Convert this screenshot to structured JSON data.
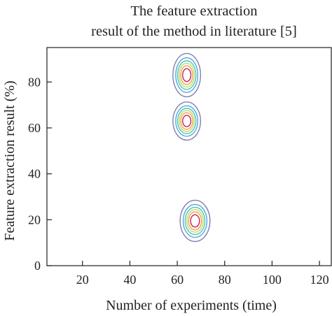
{
  "chart_data": {
    "type": "contour",
    "title": [
      "The feature extraction",
      "result of the method in literature [5]"
    ],
    "xlabel": "Number of experiments (time)",
    "ylabel": "Feature extraction result (%)",
    "xlim": [
      5,
      125
    ],
    "ylim": [
      0,
      95
    ],
    "xticks": [
      20,
      40,
      60,
      80,
      100,
      120
    ],
    "yticks": [
      0,
      20,
      40,
      60,
      80
    ],
    "grid": false,
    "peaks": [
      {
        "x": 64,
        "y": 83,
        "sx": 2.6,
        "sy": 4.2
      },
      {
        "x": 64,
        "y": 63,
        "sx": 2.6,
        "sy": 3.7
      },
      {
        "x": 67.5,
        "y": 19.5,
        "sx": 2.8,
        "sy": 4.0
      }
    ],
    "contour_levels": [
      0.08,
      0.2,
      0.33,
      0.47,
      0.62,
      0.8
    ],
    "level_colors": [
      "#8080b0",
      "#55a7e0",
      "#47c9b8",
      "#c6d86a",
      "#f0a540",
      "#c42060"
    ]
  }
}
